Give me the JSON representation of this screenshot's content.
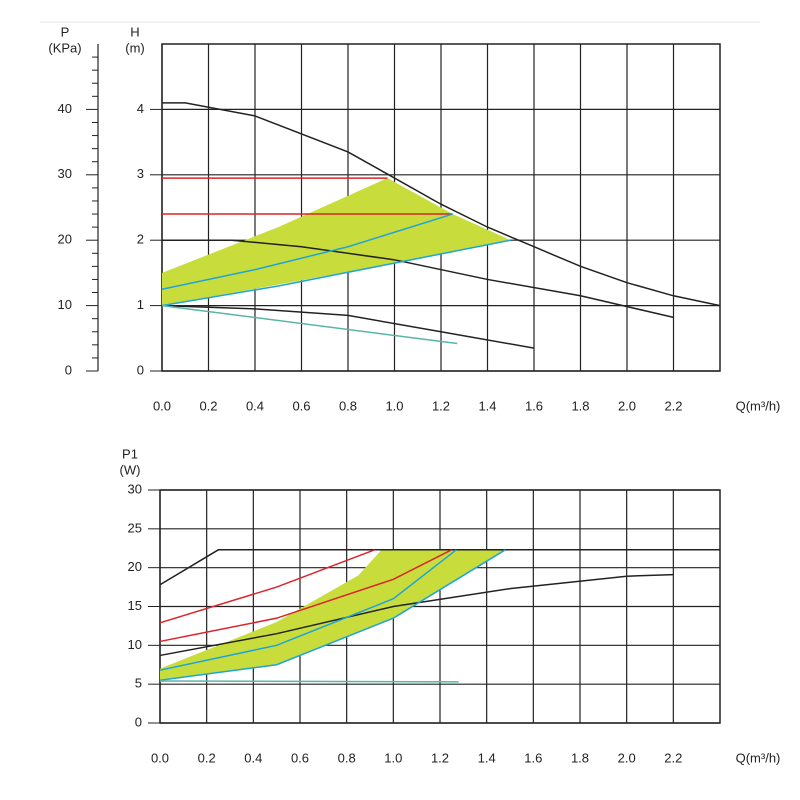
{
  "chart_data": [
    {
      "type": "line",
      "y_label": "H",
      "y_unit": "(m)",
      "y2_label": "P",
      "y2_unit": "(KPa)",
      "x_label": "Q(m³/h)",
      "xlim": [
        0,
        2.4
      ],
      "xticks": [
        {
          "value": 0,
          "label": "0.0"
        },
        {
          "value": 0.2,
          "label": "0.2"
        },
        {
          "value": 0.4,
          "label": "0.4"
        },
        {
          "value": 0.6,
          "label": "0.6"
        },
        {
          "value": 0.8,
          "label": "0.8"
        },
        {
          "value": 1.0,
          "label": "1.0"
        },
        {
          "value": 1.2,
          "label": "1.2"
        },
        {
          "value": 1.4,
          "label": "1.4"
        },
        {
          "value": 1.6,
          "label": "1.6"
        },
        {
          "value": 1.8,
          "label": "1.8"
        },
        {
          "value": 2.0,
          "label": "2.0"
        },
        {
          "value": 2.2,
          "label": "2.2"
        }
      ],
      "ylim": [
        0,
        5
      ],
      "yticks": [
        0,
        1,
        2,
        3,
        4
      ],
      "y2lim": [
        0,
        50
      ],
      "y2ticks": [
        0,
        10,
        20,
        30,
        40
      ],
      "grid": true,
      "series": [
        {
          "fill": "#c8dc3c",
          "x": [
            0,
            0.5,
            0.97,
            1.25,
            1.5,
            1.0,
            0.5,
            0
          ],
          "values": [
            1.5,
            2.2,
            2.95,
            2.4,
            2.0,
            1.65,
            1.32,
            1.0
          ]
        },
        {
          "color": "#222222",
          "x": [
            0,
            0.1,
            0.4,
            0.8,
            1.0,
            1.2,
            1.4,
            1.6,
            1.8,
            2.0,
            2.2,
            2.4
          ],
          "values": [
            4.1,
            4.1,
            3.9,
            3.35,
            2.95,
            2.55,
            2.2,
            1.9,
            1.6,
            1.35,
            1.15,
            1.0
          ]
        },
        {
          "color": "#222222",
          "x": [
            0,
            0.3,
            0.6,
            1.0,
            1.4,
            1.8,
            2.2
          ],
          "values": [
            2.0,
            2.0,
            1.9,
            1.7,
            1.4,
            1.15,
            0.82
          ]
        },
        {
          "color": "#222222",
          "x": [
            0,
            0.4,
            0.8,
            1.2,
            1.6
          ],
          "values": [
            1.0,
            0.95,
            0.85,
            0.6,
            0.35
          ]
        },
        {
          "color": "#d9262c",
          "x": [
            0,
            0.97
          ],
          "values": [
            2.95,
            2.95
          ]
        },
        {
          "color": "#d9262c",
          "x": [
            0,
            1.25
          ],
          "values": [
            2.4,
            2.4
          ]
        },
        {
          "color": "#1ea4d8",
          "x": [
            0,
            0.4,
            0.8,
            1.25
          ],
          "values": [
            1.25,
            1.55,
            1.9,
            2.4
          ]
        },
        {
          "color": "#1ea4d8",
          "x": [
            0,
            0.5,
            1.0,
            1.5
          ],
          "values": [
            1.0,
            1.3,
            1.65,
            2.0
          ]
        },
        {
          "color": "#5ab4a8",
          "x": [
            0,
            1.27
          ],
          "values": [
            1.0,
            0.42
          ]
        }
      ]
    },
    {
      "type": "line",
      "y_label": "P1",
      "y_unit": "(W)",
      "x_label": "Q(m³/h)",
      "xlim": [
        0,
        2.4
      ],
      "xticks": [
        {
          "value": 0,
          "label": "0.0"
        },
        {
          "value": 0.2,
          "label": "0.2"
        },
        {
          "value": 0.4,
          "label": "0.4"
        },
        {
          "value": 0.6,
          "label": "0.6"
        },
        {
          "value": 0.8,
          "label": "0.8"
        },
        {
          "value": 1.0,
          "label": "1.0"
        },
        {
          "value": 1.2,
          "label": "1.2"
        },
        {
          "value": 1.4,
          "label": "1.4"
        },
        {
          "value": 1.6,
          "label": "1.6"
        },
        {
          "value": 1.8,
          "label": "1.8"
        },
        {
          "value": 2.0,
          "label": "2.0"
        },
        {
          "value": 2.2,
          "label": "2.2"
        }
      ],
      "ylim": [
        0,
        30
      ],
      "yticks": [
        0,
        5,
        10,
        15,
        20,
        25,
        30
      ],
      "grid": true,
      "series": [
        {
          "fill": "#c8dc3c",
          "x": [
            0,
            0.5,
            0.85,
            0.95,
            1.45,
            1.48,
            1.0,
            0.5,
            0
          ],
          "values": [
            7.0,
            13.0,
            19.0,
            22.3,
            22.3,
            22.3,
            13.5,
            7.5,
            5.5
          ]
        },
        {
          "color": "#222222",
          "x": [
            0,
            0.25,
            2.4
          ],
          "values": [
            17.8,
            22.3,
            22.3
          ]
        },
        {
          "color": "#222222",
          "x": [
            0,
            0.5,
            1.0,
            1.5,
            2.0,
            2.2
          ],
          "values": [
            8.7,
            11.5,
            15.0,
            17.3,
            18.9,
            19.1
          ]
        },
        {
          "color": "#d9262c",
          "x": [
            0,
            0.5,
            0.92
          ],
          "values": [
            12.9,
            17.5,
            22.3
          ]
        },
        {
          "color": "#d9262c",
          "x": [
            0,
            0.5,
            1.0,
            1.25
          ],
          "values": [
            10.5,
            13.5,
            18.5,
            22.3
          ]
        },
        {
          "color": "#1ea4d8",
          "x": [
            0,
            0.5,
            1.0,
            1.27
          ],
          "values": [
            6.8,
            10.0,
            16.0,
            22.3
          ]
        },
        {
          "color": "#1ea4d8",
          "x": [
            0,
            0.5,
            1.0,
            1.48
          ],
          "values": [
            5.5,
            7.5,
            13.5,
            22.3
          ]
        },
        {
          "color": "#5ab4a8",
          "x": [
            0,
            1.28
          ],
          "values": [
            5.4,
            5.3
          ]
        }
      ]
    }
  ]
}
